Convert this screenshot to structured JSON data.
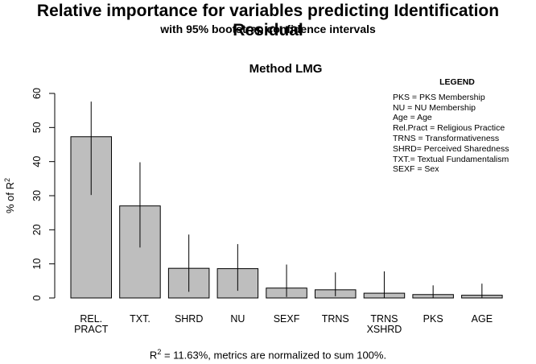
{
  "header": {
    "title": "Relative importance for variables predicting Identification Residual",
    "subtitle": "with 95% bootstrap confidence intervals"
  },
  "chart_data": {
    "type": "bar",
    "title": "Method LMG",
    "xlabel": "",
    "ylabel_main": "% of R",
    "ylabel_sup": "2",
    "ylim": [
      0,
      60
    ],
    "yticks": [
      0,
      10,
      20,
      30,
      40,
      50,
      60
    ],
    "categories": [
      {
        "line1": "REL.",
        "line2": "PRACT"
      },
      {
        "line1": "TXT.",
        "line2": ""
      },
      {
        "line1": "SHRD",
        "line2": ""
      },
      {
        "line1": "NU",
        "line2": ""
      },
      {
        "line1": "SEXF",
        "line2": ""
      },
      {
        "line1": "TRNS",
        "line2": ""
      },
      {
        "line1": "TRNS",
        "line2": "XSHRD"
      },
      {
        "line1": "PKS",
        "line2": ""
      },
      {
        "line1": "AGE",
        "line2": ""
      }
    ],
    "values": [
      47.3,
      27.0,
      8.7,
      8.6,
      2.9,
      2.4,
      1.4,
      1.0,
      0.8
    ],
    "ci_lower": [
      30.2,
      14.8,
      1.8,
      2.1,
      0.3,
      0.5,
      0.1,
      0.1,
      0.0
    ],
    "ci_upper": [
      57.6,
      39.8,
      18.6,
      15.8,
      9.8,
      7.5,
      7.8,
      3.7,
      4.2
    ],
    "bar_color": "#bebebe",
    "legend": {
      "title": "LEGEND",
      "entries": [
        "PKS = PKS Membership",
        "NU = NU Membership",
        "Age = Age",
        "Rel.Pract = Religious Practice",
        "TRNS = Transformativeness",
        "SHRD= Perceived Sharedness",
        "TXT.= Textual Fundamentalism",
        "SEXF = Sex"
      ]
    }
  },
  "footer": {
    "caption_r": "R",
    "caption_sup": "2",
    "caption_rest": " = 11.63%, metrics are normalized to sum 100%."
  }
}
